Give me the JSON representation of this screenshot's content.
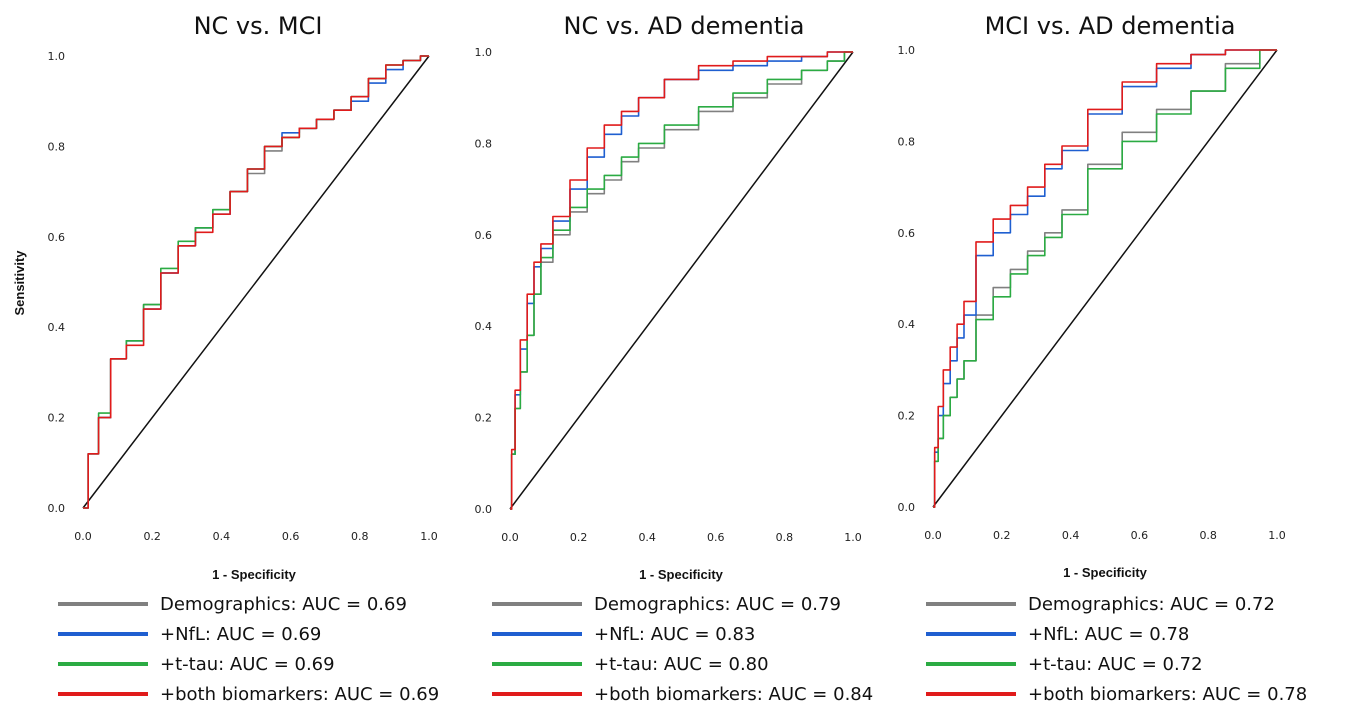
{
  "legend_colors": {
    "demographics": "#808080",
    "nfl": "#1f5fd0",
    "ttau": "#2bab43",
    "both": "#e01b1b"
  },
  "chart_data": [
    {
      "type": "line",
      "title": "NC vs. MCI",
      "xlabel": "1 - Specificity",
      "ylabel": "Sensitivity",
      "xlim": [
        0,
        1
      ],
      "ylim": [
        0,
        1
      ],
      "x_ticks": [
        "0.0",
        "0.2",
        "0.4",
        "0.6",
        "0.8",
        "1.0"
      ],
      "y_ticks": [
        "0.0",
        "0.2",
        "0.4",
        "0.6",
        "0.8",
        "1.0"
      ],
      "grid": false,
      "legend_position": "below",
      "reference_line": [
        [
          0,
          0
        ],
        [
          1,
          1
        ]
      ],
      "series": [
        {
          "name": "Demographics: AUC = 0.69",
          "color": "#808080",
          "x": [
            0,
            0.03,
            0.06,
            0.1,
            0.15,
            0.2,
            0.25,
            0.3,
            0.35,
            0.4,
            0.45,
            0.5,
            0.55,
            0.6,
            0.65,
            0.7,
            0.75,
            0.8,
            0.85,
            0.9,
            0.95,
            1.0
          ],
          "y": [
            0,
            0.12,
            0.2,
            0.33,
            0.37,
            0.45,
            0.52,
            0.58,
            0.62,
            0.66,
            0.7,
            0.74,
            0.79,
            0.82,
            0.84,
            0.86,
            0.88,
            0.91,
            0.95,
            0.98,
            0.99,
            1.0
          ]
        },
        {
          "name": "+NfL: AUC = 0.69",
          "color": "#1f5fd0",
          "x": [
            0,
            0.03,
            0.06,
            0.1,
            0.15,
            0.2,
            0.25,
            0.3,
            0.35,
            0.4,
            0.45,
            0.5,
            0.55,
            0.6,
            0.65,
            0.7,
            0.75,
            0.8,
            0.85,
            0.9,
            0.95,
            1.0
          ],
          "y": [
            0,
            0.12,
            0.2,
            0.33,
            0.37,
            0.44,
            0.52,
            0.58,
            0.62,
            0.65,
            0.7,
            0.75,
            0.8,
            0.83,
            0.84,
            0.86,
            0.88,
            0.9,
            0.94,
            0.97,
            0.99,
            1.0
          ]
        },
        {
          "name": "+t-tau: AUC = 0.69",
          "color": "#2bab43",
          "x": [
            0,
            0.03,
            0.06,
            0.1,
            0.15,
            0.2,
            0.25,
            0.3,
            0.35,
            0.4,
            0.45,
            0.5,
            0.55,
            0.6,
            0.65,
            0.7,
            0.75,
            0.8,
            0.85,
            0.9,
            0.95,
            1.0
          ],
          "y": [
            0,
            0.12,
            0.21,
            0.33,
            0.37,
            0.45,
            0.53,
            0.59,
            0.62,
            0.66,
            0.7,
            0.75,
            0.8,
            0.82,
            0.84,
            0.86,
            0.88,
            0.91,
            0.95,
            0.98,
            0.99,
            1.0
          ]
        },
        {
          "name": "+both biomarkers: AUC = 0.69",
          "color": "#e01b1b",
          "x": [
            0,
            0.03,
            0.06,
            0.1,
            0.15,
            0.2,
            0.25,
            0.3,
            0.35,
            0.4,
            0.45,
            0.5,
            0.55,
            0.6,
            0.65,
            0.7,
            0.75,
            0.8,
            0.85,
            0.9,
            0.95,
            1.0
          ],
          "y": [
            0,
            0.12,
            0.2,
            0.33,
            0.36,
            0.44,
            0.52,
            0.58,
            0.61,
            0.65,
            0.7,
            0.75,
            0.8,
            0.82,
            0.84,
            0.86,
            0.88,
            0.91,
            0.95,
            0.98,
            0.99,
            1.0
          ]
        }
      ]
    },
    {
      "type": "line",
      "title": "NC vs. AD dementia",
      "xlabel": "1 - Specificity",
      "ylabel": "",
      "xlim": [
        0,
        1
      ],
      "ylim": [
        0,
        1
      ],
      "x_ticks": [
        "0.0",
        "0.2",
        "0.4",
        "0.6",
        "0.8",
        "1.0"
      ],
      "y_ticks": [
        "0.0",
        "0.2",
        "0.4",
        "0.6",
        "0.8",
        "1.0"
      ],
      "grid": false,
      "legend_position": "below",
      "reference_line": [
        [
          0,
          0
        ],
        [
          1,
          1
        ]
      ],
      "series": [
        {
          "name": "Demographics: AUC = 0.79",
          "color": "#808080",
          "x": [
            0,
            0.01,
            0.02,
            0.04,
            0.06,
            0.08,
            0.1,
            0.15,
            0.2,
            0.25,
            0.3,
            0.35,
            0.4,
            0.5,
            0.6,
            0.7,
            0.8,
            0.9,
            0.95,
            1.0
          ],
          "y": [
            0,
            0.12,
            0.22,
            0.3,
            0.38,
            0.47,
            0.54,
            0.6,
            0.65,
            0.69,
            0.72,
            0.76,
            0.79,
            0.83,
            0.87,
            0.9,
            0.93,
            0.96,
            0.98,
            1.0
          ]
        },
        {
          "name": "+NfL: AUC = 0.83",
          "color": "#1f5fd0",
          "x": [
            0,
            0.01,
            0.02,
            0.04,
            0.06,
            0.08,
            0.1,
            0.15,
            0.2,
            0.25,
            0.3,
            0.35,
            0.4,
            0.5,
            0.6,
            0.7,
            0.8,
            0.9,
            0.95,
            1.0
          ],
          "y": [
            0,
            0.12,
            0.25,
            0.35,
            0.45,
            0.53,
            0.57,
            0.63,
            0.7,
            0.77,
            0.82,
            0.86,
            0.9,
            0.94,
            0.96,
            0.97,
            0.98,
            0.99,
            1.0,
            1.0
          ]
        },
        {
          "name": "+t-tau: AUC = 0.80",
          "color": "#2bab43",
          "x": [
            0,
            0.01,
            0.02,
            0.04,
            0.06,
            0.08,
            0.1,
            0.15,
            0.2,
            0.25,
            0.3,
            0.35,
            0.4,
            0.5,
            0.6,
            0.7,
            0.8,
            0.9,
            0.95,
            1.0
          ],
          "y": [
            0,
            0.12,
            0.22,
            0.3,
            0.38,
            0.47,
            0.55,
            0.61,
            0.66,
            0.7,
            0.73,
            0.77,
            0.8,
            0.84,
            0.88,
            0.91,
            0.94,
            0.96,
            0.98,
            1.0
          ]
        },
        {
          "name": "+both biomarkers: AUC = 0.84",
          "color": "#e01b1b",
          "x": [
            0,
            0.01,
            0.02,
            0.04,
            0.06,
            0.08,
            0.1,
            0.15,
            0.2,
            0.25,
            0.3,
            0.35,
            0.4,
            0.5,
            0.6,
            0.7,
            0.8,
            0.9,
            0.95,
            1.0
          ],
          "y": [
            0,
            0.13,
            0.26,
            0.37,
            0.47,
            0.54,
            0.58,
            0.64,
            0.72,
            0.79,
            0.84,
            0.87,
            0.9,
            0.94,
            0.97,
            0.98,
            0.99,
            0.99,
            1.0,
            1.0
          ]
        }
      ]
    },
    {
      "type": "line",
      "title": "MCI vs. AD dementia",
      "xlabel": "1 - Specificity",
      "ylabel": "",
      "xlim": [
        0,
        1
      ],
      "ylim": [
        0,
        1
      ],
      "x_ticks": [
        "0.0",
        "0.2",
        "0.4",
        "0.6",
        "0.8",
        "1.0"
      ],
      "y_ticks": [
        "0.0",
        "0.2",
        "0.4",
        "0.6",
        "0.8",
        "1.0"
      ],
      "grid": false,
      "legend_position": "below",
      "reference_line": [
        [
          0,
          0
        ],
        [
          1,
          1
        ]
      ],
      "series": [
        {
          "name": "Demographics: AUC = 0.72",
          "color": "#808080",
          "x": [
            0,
            0.01,
            0.02,
            0.04,
            0.06,
            0.08,
            0.1,
            0.15,
            0.2,
            0.25,
            0.3,
            0.35,
            0.4,
            0.5,
            0.6,
            0.7,
            0.8,
            0.9,
            1.0
          ],
          "y": [
            0,
            0.1,
            0.15,
            0.2,
            0.24,
            0.28,
            0.32,
            0.42,
            0.48,
            0.52,
            0.56,
            0.6,
            0.65,
            0.75,
            0.82,
            0.87,
            0.91,
            0.97,
            1.0
          ]
        },
        {
          "name": "+NfL: AUC = 0.78",
          "color": "#1f5fd0",
          "x": [
            0,
            0.01,
            0.02,
            0.04,
            0.06,
            0.08,
            0.1,
            0.15,
            0.2,
            0.25,
            0.3,
            0.35,
            0.4,
            0.5,
            0.6,
            0.7,
            0.8,
            0.9,
            1.0
          ],
          "y": [
            0,
            0.12,
            0.2,
            0.27,
            0.32,
            0.37,
            0.42,
            0.55,
            0.6,
            0.64,
            0.68,
            0.74,
            0.78,
            0.86,
            0.92,
            0.96,
            0.99,
            1.0,
            1.0
          ]
        },
        {
          "name": "+t-tau: AUC = 0.72",
          "color": "#2bab43",
          "x": [
            0,
            0.01,
            0.02,
            0.04,
            0.06,
            0.08,
            0.1,
            0.15,
            0.2,
            0.25,
            0.3,
            0.35,
            0.4,
            0.5,
            0.6,
            0.7,
            0.8,
            0.9,
            1.0
          ],
          "y": [
            0,
            0.1,
            0.15,
            0.2,
            0.24,
            0.28,
            0.32,
            0.41,
            0.46,
            0.51,
            0.55,
            0.59,
            0.64,
            0.74,
            0.8,
            0.86,
            0.91,
            0.96,
            1.0
          ]
        },
        {
          "name": "+both biomarkers: AUC = 0.78",
          "color": "#e01b1b",
          "x": [
            0,
            0.01,
            0.02,
            0.04,
            0.06,
            0.08,
            0.1,
            0.15,
            0.2,
            0.25,
            0.3,
            0.35,
            0.4,
            0.5,
            0.6,
            0.7,
            0.8,
            0.9,
            1.0
          ],
          "y": [
            0,
            0.13,
            0.22,
            0.3,
            0.35,
            0.4,
            0.45,
            0.58,
            0.63,
            0.66,
            0.7,
            0.75,
            0.79,
            0.87,
            0.93,
            0.97,
            0.99,
            1.0,
            1.0
          ]
        }
      ]
    }
  ]
}
